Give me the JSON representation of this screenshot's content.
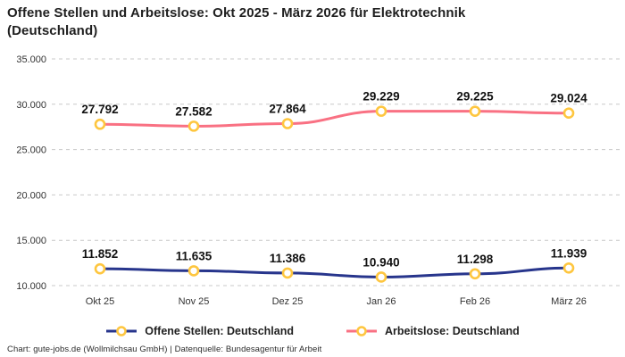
{
  "title": "Offene Stellen und Arbeitslose: Okt 2025 - März 2026 für Elektrotechnik (Deutschland)",
  "footer": "Chart: gute-jobs.de (Wollmilchsau GmbH) | Datenquelle: Bundesagentur für Arbeit",
  "colors": {
    "offene_stellen": "#27358c",
    "arbeitslose": "#f97183",
    "marker_ring": "#fec63f",
    "marker_fill": "#ffffff",
    "grid": "#c9c9c9",
    "tick_text": "#333333",
    "data_label": "#111111"
  },
  "chart_data": {
    "type": "line",
    "title": "Offene Stellen und Arbeitslose: Okt 2025 - März 2026 für Elektrotechnik (Deutschland)",
    "categories": [
      "Okt 25",
      "Nov 25",
      "Dez 25",
      "Jan 26",
      "Feb 26",
      "März 26"
    ],
    "series": [
      {
        "name": "Offene Stellen: Deutschland",
        "color_key": "offene_stellen",
        "values": [
          11852,
          11635,
          11386,
          10940,
          11298,
          11939
        ],
        "labels": [
          "11.852",
          "11.635",
          "11.386",
          "10.940",
          "11.298",
          "11.939"
        ]
      },
      {
        "name": "Arbeitslose: Deutschland",
        "color_key": "arbeitslose",
        "values": [
          27792,
          27582,
          27864,
          29229,
          29225,
          29024
        ],
        "labels": [
          "27.792",
          "27.582",
          "27.864",
          "29.229",
          "29.225",
          "29.024"
        ]
      }
    ],
    "yticks": [
      10000,
      15000,
      20000,
      25000,
      30000,
      35000
    ],
    "ytick_labels": [
      "10.000",
      "15.000",
      "20.000",
      "25.000",
      "30.000",
      "35.000"
    ],
    "ylim": [
      10000,
      35000
    ],
    "grid": true,
    "grid_style": "dashed",
    "legend_position": "bottom",
    "xlabel": "",
    "ylabel": ""
  }
}
